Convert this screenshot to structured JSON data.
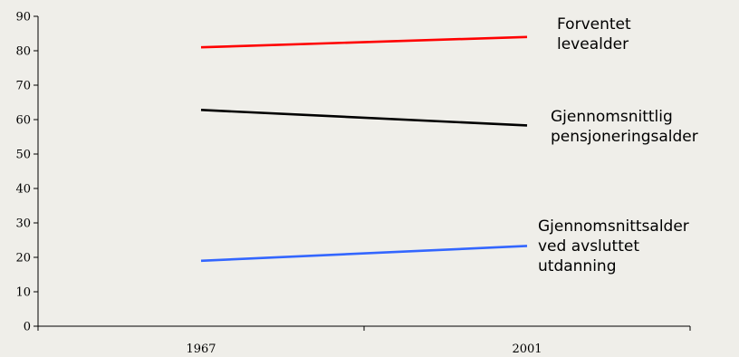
{
  "chart_data": {
    "type": "line",
    "title": "",
    "xlabel": "",
    "ylabel": "",
    "categories": [
      "1967",
      "2001"
    ],
    "ylim": [
      0,
      90
    ],
    "yticks": [
      0,
      10,
      20,
      30,
      40,
      50,
      60,
      70,
      80,
      90
    ],
    "grid": false,
    "legend": "inline-right",
    "series": [
      {
        "label_lines": [
          "Forventet",
          "levealder"
        ],
        "color": "#ff0000",
        "values": [
          81,
          84
        ]
      },
      {
        "label_lines": [
          "Gjennomsnittlig",
          "pensjoneringsalder"
        ],
        "color": "#000000",
        "values": [
          62.8,
          58.3
        ]
      },
      {
        "label_lines": [
          "Gjennomsnittsalder",
          "ved avsluttet",
          "utdanning"
        ],
        "color": "#3366ff",
        "values": [
          19,
          23.3
        ]
      }
    ]
  }
}
